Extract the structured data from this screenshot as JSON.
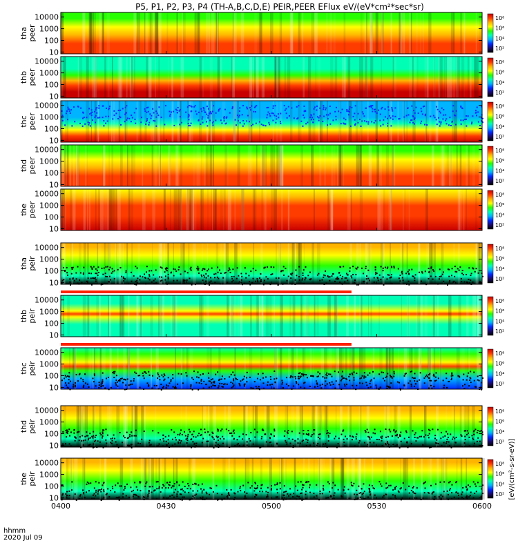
{
  "title": "P5, P1, P2, P3, P4 (TH-A,B,C,D,E) PEIR,PEER EFlux eV/(eV*cm²*sec*sr)",
  "colorbar_unit_label": "[eV/(cm²-s-sr-eV)]",
  "colors": {
    "colormap": [
      "#000000",
      "#1a0a6b",
      "#0028ff",
      "#00b4ff",
      "#00ffb4",
      "#28ff00",
      "#ffff00",
      "#ffb400",
      "#ff3c00",
      "#c80000"
    ],
    "mask_bar": "#ff2000"
  },
  "chart_data": {
    "type": "heatmap",
    "x_axis": {
      "label": "hhmm",
      "date": "2020 Jul 09",
      "ticks": [
        "0400",
        "0430",
        "0500",
        "0530",
        "0600"
      ],
      "range": [
        "04:00",
        "06:00"
      ]
    },
    "y_scale": "log",
    "y_ticks": [
      "10",
      "100",
      "1000",
      "10000"
    ],
    "y_range_eV": [
      7,
      25000
    ],
    "colorbar_ticks": [
      "10²",
      "10⁴",
      "10⁶",
      "10⁸"
    ],
    "panels": [
      {
        "probe": "tha",
        "species": "peer",
        "label": [
          "tha",
          "peer"
        ],
        "palette_profile": "electron_hot"
      },
      {
        "probe": "thb",
        "species": "peer",
        "label": [
          "thb",
          "peer"
        ],
        "palette_profile": "electron_lobe"
      },
      {
        "probe": "thc",
        "species": "peer",
        "label": [
          "thc",
          "peer"
        ],
        "palette_profile": "electron_noisy"
      },
      {
        "probe": "thd",
        "species": "peer",
        "label": [
          "thd",
          "peer"
        ],
        "palette_profile": "electron_hot"
      },
      {
        "probe": "the",
        "species": "peer",
        "label": [
          "the",
          "peer"
        ],
        "palette_profile": "electron_very_hot"
      },
      {
        "probe": "tha",
        "species": "peir",
        "label": [
          "tha",
          "peir"
        ],
        "palette_profile": "ion_sparse"
      },
      {
        "probe": "thb",
        "species": "peir",
        "label": [
          "thb",
          "peir"
        ],
        "palette_profile": "ion_band"
      },
      {
        "probe": "thc",
        "species": "peir",
        "label": [
          "thc",
          "peir"
        ],
        "palette_profile": "ion_band_noisy"
      },
      {
        "probe": "thd",
        "species": "peir",
        "label": [
          "thd",
          "peir"
        ],
        "palette_profile": "ion_sparse"
      },
      {
        "probe": "the",
        "species": "peir",
        "label": [
          "the",
          "peir"
        ],
        "palette_profile": "ion_sparse"
      }
    ]
  }
}
